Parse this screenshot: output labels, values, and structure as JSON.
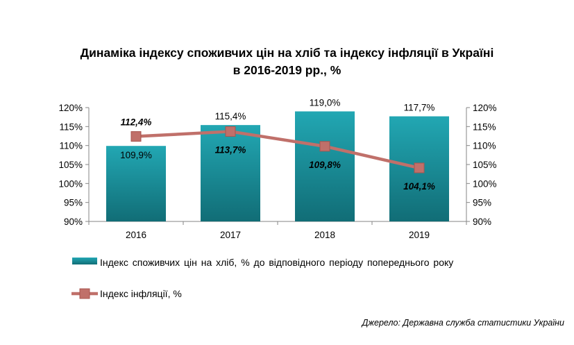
{
  "title": {
    "line1": "Динаміка індексу споживчих цін на хліб та індексу інфляції в Україні",
    "line2": "в 2016-2019 рр., %"
  },
  "chart_data": {
    "type": "bar+line",
    "categories": [
      "2016",
      "2017",
      "2018",
      "2019"
    ],
    "series": [
      {
        "name": "Індекс споживчих  цін на хліб,  % до відповідного  періоду  попереднього року",
        "type": "bar",
        "axis": "left",
        "values": [
          109.9,
          115.4,
          119.0,
          117.7
        ],
        "labels": [
          "109,9%",
          "115,4%",
          "119,0%",
          "117,7%"
        ],
        "color": "#1f9aa6"
      },
      {
        "name": "Індекс  інфляції,  %",
        "type": "line",
        "axis": "right",
        "values": [
          112.4,
          113.7,
          109.8,
          104.1
        ],
        "labels": [
          "112,4%",
          "113,7%",
          "109,8%",
          "104,1%"
        ],
        "color": "#c0706a"
      }
    ],
    "y_left": {
      "min": 90,
      "max": 120,
      "step": 5,
      "ticks": [
        "90%",
        "95%",
        "100%",
        "105%",
        "110%",
        "115%",
        "120%"
      ]
    },
    "y_right": {
      "min": 90,
      "max": 120,
      "step": 5,
      "ticks": [
        "90%",
        "95%",
        "100%",
        "105%",
        "110%",
        "115%",
        "120%"
      ]
    },
    "legend_position": "bottom"
  },
  "legend": {
    "bar_label": "Індекс споживчих  цін на хліб,  % до відповідного  періоду  попереднього року",
    "line_label": "Індекс  інфляції,  %"
  },
  "source": "Джерело: Державна служба статистики України"
}
